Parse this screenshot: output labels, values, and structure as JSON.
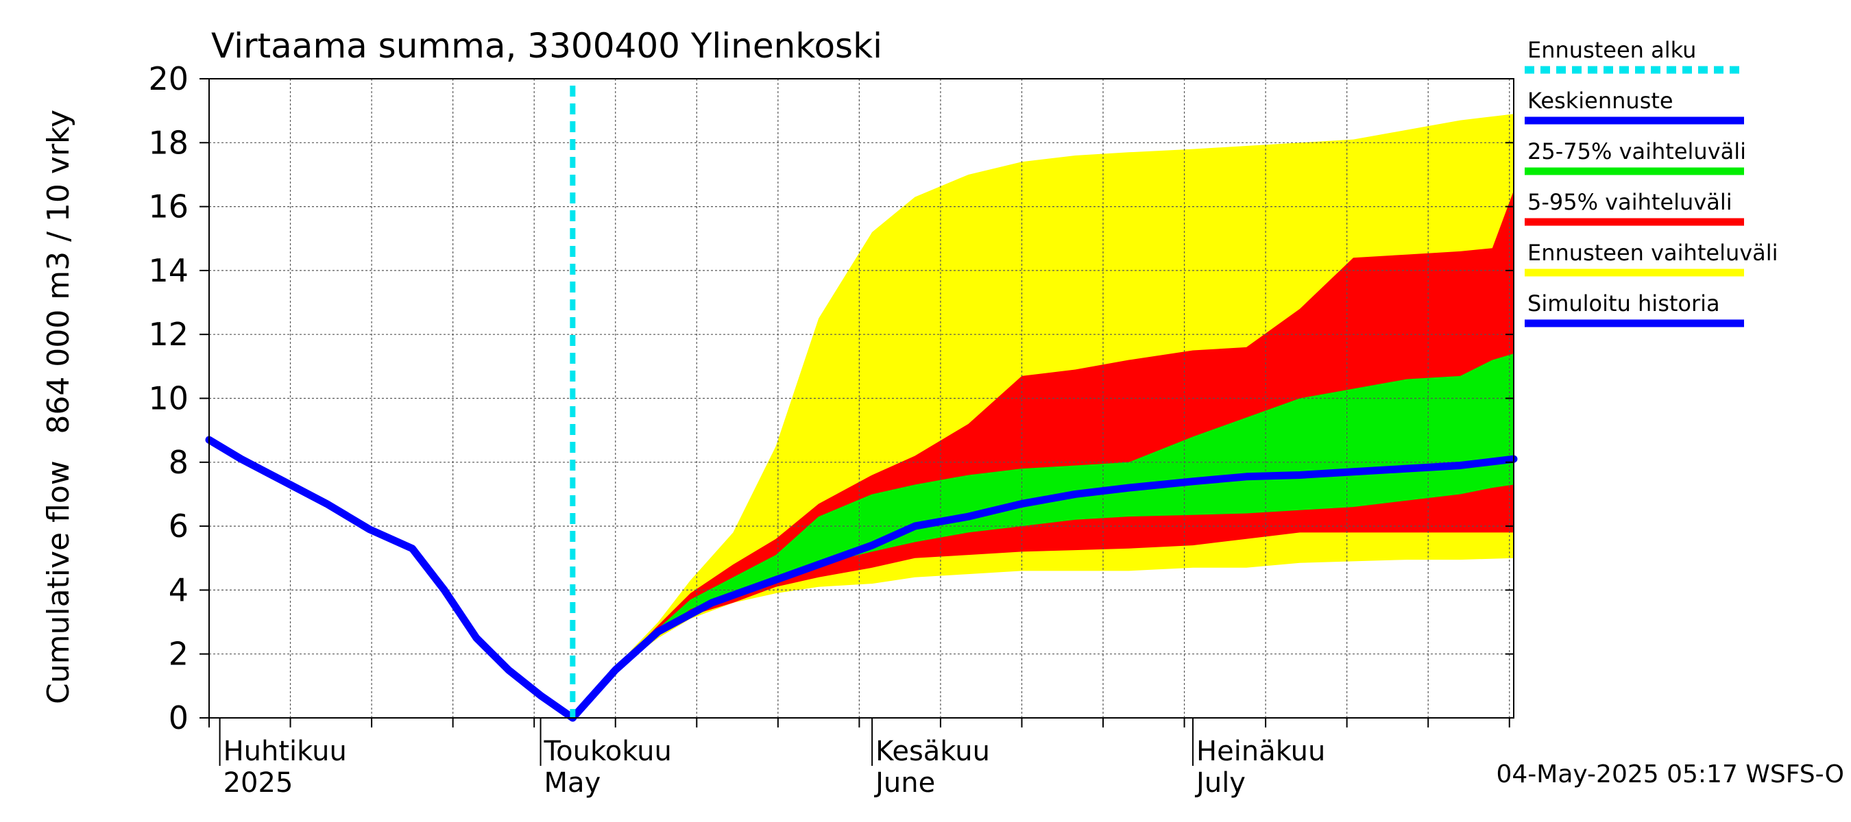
{
  "chart_data": {
    "type": "area",
    "title": "Virtaama summa, 3300400 Ylinenkoski",
    "ylabel_top": "864 000 m3 / 10 vrky",
    "ylabel_bottom": "Cumulative flow",
    "ylim": [
      0,
      20
    ],
    "yticks": [
      0,
      2,
      4,
      6,
      8,
      10,
      12,
      14,
      16,
      18,
      20
    ],
    "xlim": [
      "2025-03-31",
      "2025-07-31"
    ],
    "grid": true,
    "month_labels": [
      {
        "date": "2025-04-01",
        "fi": "Huhtikuu",
        "en": "2025"
      },
      {
        "date": "2025-05-01",
        "fi": "Toukokuu",
        "en": "May"
      },
      {
        "date": "2025-06-01",
        "fi": "Kesäkuu",
        "en": "June"
      },
      {
        "date": "2025-07-01",
        "fi": "Heinäkuu",
        "en": "July"
      }
    ],
    "forecast_start": "2025-05-04",
    "legend": [
      {
        "label": "Ennusteen alku",
        "color": "#00e5ee",
        "style": "dashed"
      },
      {
        "label": "Keskiennuste",
        "color": "#0000ff",
        "style": "solid"
      },
      {
        "label": "25-75% vaihteluväli",
        "color": "#00ee00",
        "style": "solid"
      },
      {
        "label": "5-95% vaihteluväli",
        "color": "#ff0000",
        "style": "solid"
      },
      {
        "label": "Ennusteen vaihteluväli",
        "color": "#ffff00",
        "style": "solid"
      },
      {
        "label": "Simuloitu historia",
        "color": "#0000ff",
        "style": "solid"
      }
    ],
    "legend_position": "right",
    "footer": "04-May-2025 05:17 WSFS-O",
    "series": [
      {
        "name": "Simuloitu historia",
        "x": [
          "2025-03-31",
          "2025-04-03",
          "2025-04-07",
          "2025-04-11",
          "2025-04-15",
          "2025-04-19",
          "2025-04-22",
          "2025-04-25",
          "2025-04-28",
          "2025-05-01",
          "2025-05-04"
        ],
        "y": [
          8.7,
          8.1,
          7.4,
          6.7,
          5.9,
          5.3,
          4.0,
          2.5,
          1.5,
          0.7,
          0.0
        ]
      },
      {
        "name": "Keskiennuste",
        "x": [
          "2025-05-04",
          "2025-05-08",
          "2025-05-12",
          "2025-05-17",
          "2025-05-22",
          "2025-05-27",
          "2025-06-01",
          "2025-06-05",
          "2025-06-10",
          "2025-06-15",
          "2025-06-20",
          "2025-06-25",
          "2025-07-01",
          "2025-07-06",
          "2025-07-11",
          "2025-07-16",
          "2025-07-21",
          "2025-07-26",
          "2025-07-31"
        ],
        "y": [
          0.0,
          1.5,
          2.7,
          3.6,
          4.2,
          4.8,
          5.4,
          6.0,
          6.3,
          6.7,
          7.0,
          7.2,
          7.4,
          7.55,
          7.6,
          7.7,
          7.8,
          7.9,
          8.1
        ]
      },
      {
        "name": "Ennusteen vaihteluväli",
        "x": [
          "2025-05-04",
          "2025-05-08",
          "2025-05-12",
          "2025-05-15",
          "2025-05-19",
          "2025-05-23",
          "2025-05-27",
          "2025-06-01",
          "2025-06-05",
          "2025-06-10",
          "2025-06-15",
          "2025-06-20",
          "2025-06-25",
          "2025-07-01",
          "2025-07-06",
          "2025-07-11",
          "2025-07-16",
          "2025-07-21",
          "2025-07-26",
          "2025-07-31"
        ],
        "upper": [
          0.0,
          1.6,
          3.0,
          4.3,
          5.8,
          8.5,
          12.5,
          15.2,
          16.3,
          17.0,
          17.4,
          17.6,
          17.7,
          17.8,
          17.9,
          18.0,
          18.1,
          18.4,
          18.7,
          18.9
        ],
        "lower": [
          0.0,
          1.5,
          2.5,
          3.1,
          3.6,
          3.9,
          4.1,
          4.2,
          4.4,
          4.5,
          4.6,
          4.6,
          4.6,
          4.7,
          4.7,
          4.85,
          4.9,
          4.95,
          4.95,
          5.0
        ]
      },
      {
        "name": "5-95% vaihteluväli",
        "x": [
          "2025-05-04",
          "2025-05-08",
          "2025-05-12",
          "2025-05-15",
          "2025-05-19",
          "2025-05-23",
          "2025-05-27",
          "2025-06-01",
          "2025-06-05",
          "2025-06-10",
          "2025-06-15",
          "2025-06-20",
          "2025-06-25",
          "2025-07-01",
          "2025-07-06",
          "2025-07-11",
          "2025-07-16",
          "2025-07-21",
          "2025-07-26",
          "2025-07-29",
          "2025-07-31"
        ],
        "upper": [
          0.0,
          1.55,
          2.9,
          3.9,
          4.8,
          5.6,
          6.7,
          7.6,
          8.2,
          9.2,
          10.7,
          10.9,
          11.2,
          11.5,
          11.6,
          12.8,
          14.4,
          14.5,
          14.6,
          14.7,
          16.5
        ],
        "lower": [
          0.0,
          1.5,
          2.6,
          3.2,
          3.6,
          4.1,
          4.4,
          4.7,
          5.0,
          5.1,
          5.2,
          5.25,
          5.3,
          5.4,
          5.6,
          5.8,
          5.8,
          5.8,
          5.8,
          5.8,
          5.8
        ]
      },
      {
        "name": "25-75% vaihteluväli",
        "x": [
          "2025-05-04",
          "2025-05-08",
          "2025-05-12",
          "2025-05-15",
          "2025-05-19",
          "2025-05-23",
          "2025-05-27",
          "2025-06-01",
          "2025-06-05",
          "2025-06-10",
          "2025-06-15",
          "2025-06-20",
          "2025-06-25",
          "2025-07-01",
          "2025-07-06",
          "2025-07-11",
          "2025-07-16",
          "2025-07-21",
          "2025-07-26",
          "2025-07-29",
          "2025-07-31"
        ],
        "upper": [
          0.0,
          1.52,
          2.8,
          3.7,
          4.4,
          5.1,
          6.3,
          7.0,
          7.3,
          7.6,
          7.8,
          7.9,
          8.0,
          8.8,
          9.4,
          10.0,
          10.3,
          10.6,
          10.7,
          11.2,
          11.4
        ],
        "lower": [
          0.0,
          1.5,
          2.65,
          3.4,
          3.9,
          4.4,
          4.8,
          5.2,
          5.5,
          5.8,
          6.0,
          6.2,
          6.3,
          6.35,
          6.4,
          6.5,
          6.6,
          6.8,
          7.0,
          7.2,
          7.3
        ]
      }
    ]
  }
}
